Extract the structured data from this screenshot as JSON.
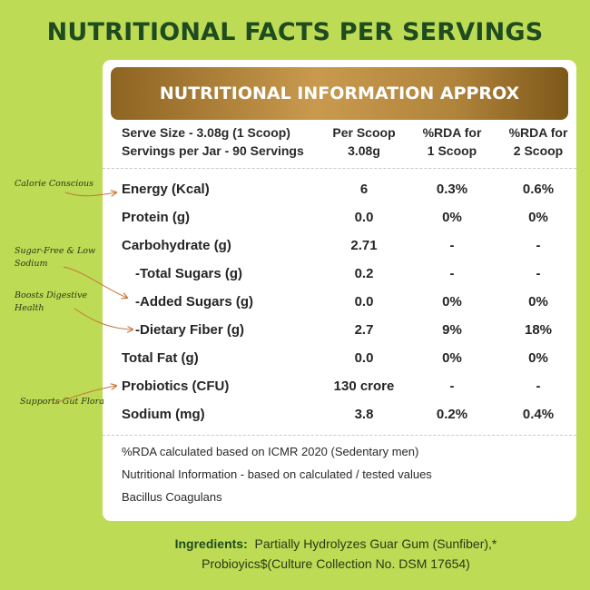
{
  "title": "NUTRITIONAL FACTS PER SERVINGS",
  "banner": "NUTRITIONAL INFORMATION APPROX",
  "header": {
    "serve_size": "Serve Size - 3.08g (1 Scoop)",
    "servings": "Servings per Jar - 90 Servings",
    "col2_line1": "Per Scoop",
    "col2_line2": "3.08g",
    "col3_line1": "%RDA for",
    "col3_line2": "1 Scoop",
    "col4_line1": "%RDA for",
    "col4_line2": "2 Scoop"
  },
  "rows": [
    {
      "name": "Energy (Kcal)",
      "per_scoop": "6",
      "rda1": "0.3%",
      "rda2": "0.6%"
    },
    {
      "name": "Protein (g)",
      "per_scoop": "0.0",
      "rda1": "0%",
      "rda2": "0%"
    },
    {
      "name": "Carbohydrate (g)",
      "per_scoop": "2.71",
      "rda1": "-",
      "rda2": "-"
    },
    {
      "name": "-Total Sugars (g)",
      "per_scoop": "0.2",
      "rda1": "-",
      "rda2": "-"
    },
    {
      "name": "-Added Sugars (g)",
      "per_scoop": "0.0",
      "rda1": "0%",
      "rda2": "0%"
    },
    {
      "name": "-Dietary Fiber (g)",
      "per_scoop": "2.7",
      "rda1": "9%",
      "rda2": "18%"
    },
    {
      "name": "Total Fat (g)",
      "per_scoop": "0.0",
      "rda1": "0%",
      "rda2": "0%"
    },
    {
      "name": "Probiotics (CFU)",
      "per_scoop": "130 crore",
      "rda1": "-",
      "rda2": "-"
    },
    {
      "name": "Sodium (mg)",
      "per_scoop": "3.8",
      "rda1": "0.2%",
      "rda2": "0.4%"
    }
  ],
  "notes": [
    "%RDA calculated based on ICMR 2020 (Sedentary men)",
    "Nutritional Information - based on calculated / tested values",
    "Bacillus Coagulans"
  ],
  "annotations": {
    "a1": "Calorie Conscious",
    "a2": "Sugar-Free & Low Sodium",
    "a3": "Boosts Digestive Health",
    "a4": "Supports Gut Flora"
  },
  "ingredients": {
    "label": "Ingredients:",
    "line1": "Partially Hydrolyzes Guar Gum (Sunfiber),*",
    "line2": "Probioyics$(Culture Collection No. DSM 17654)"
  },
  "colors": {
    "background": "#bddb54",
    "title": "#1f4b20",
    "banner_gold": "#b0843b",
    "card": "#ffffff"
  }
}
